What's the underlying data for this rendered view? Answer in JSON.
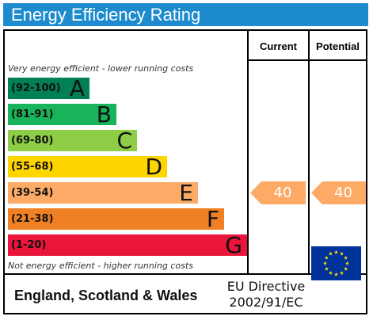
{
  "title": "Energy Efficiency Rating",
  "columns": {
    "current": "Current",
    "potential": "Potential"
  },
  "notes": {
    "top": "Very energy efficient - lower running costs",
    "bottom": "Not energy efficient - higher running costs"
  },
  "bands": [
    {
      "range": "(92-100)",
      "letter": "A",
      "color": "#008054"
    },
    {
      "range": "(81-91)",
      "letter": "B",
      "color": "#19b459"
    },
    {
      "range": "(69-80)",
      "letter": "C",
      "color": "#8dce46"
    },
    {
      "range": "(55-68)",
      "letter": "D",
      "color": "#ffd500"
    },
    {
      "range": "(39-54)",
      "letter": "E",
      "color": "#fcaa65"
    },
    {
      "range": "(21-38)",
      "letter": "F",
      "color": "#ef8023"
    },
    {
      "range": "(1-20)",
      "letter": "G",
      "color": "#e9153b"
    }
  ],
  "ratings": {
    "current": {
      "value": "40",
      "band": "E",
      "color": "#fcaa65"
    },
    "potential": {
      "value": "40",
      "band": "E",
      "color": "#fcaa65"
    }
  },
  "footer": {
    "country": "England, Scotland & Wales",
    "directive_line1": "EU Directive",
    "directive_line2": "2002/91/EC"
  },
  "colors": {
    "title_bar": "#1e8bcf",
    "eu_flag": "#003399",
    "eu_stars": "#ffdd00"
  }
}
